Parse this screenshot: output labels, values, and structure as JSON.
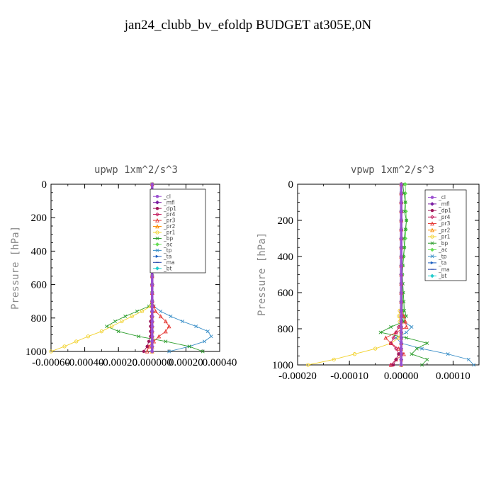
{
  "title": "jan24_clubb_bv_efoldp  BUDGET at305E,0N",
  "legend_entries": [
    {
      "name": "_cl",
      "color": "#9b4fd0",
      "marker": "dot"
    },
    {
      "name": "_mfl",
      "color": "#7b1fa2",
      "marker": "diamond"
    },
    {
      "name": "_dp1",
      "color": "#a0175a",
      "marker": "dot"
    },
    {
      "name": "_pr4",
      "color": "#c2185b",
      "marker": "open-diamond"
    },
    {
      "name": "_pr3",
      "color": "#e53935",
      "marker": "triangle"
    },
    {
      "name": "_pr2",
      "color": "#fb8c00",
      "marker": "triangle"
    },
    {
      "name": "_pr1",
      "color": "#f2d22e",
      "marker": "open-circle"
    },
    {
      "name": "_bp",
      "color": "#2e9e2e",
      "marker": "x"
    },
    {
      "name": "_ac",
      "color": "#66dd55",
      "marker": "diamond"
    },
    {
      "name": "_tp",
      "color": "#3a8fc8",
      "marker": "x"
    },
    {
      "name": "_ta",
      "color": "#1a5fc0",
      "marker": "arrow"
    },
    {
      "name": "_ma",
      "color": "#2244aa",
      "marker": "dash"
    },
    {
      "name": "_bt",
      "color": "#22cccc",
      "marker": "diamond"
    }
  ],
  "chart_data": [
    {
      "type": "line",
      "title": "upwp   1xm^2/s^3",
      "xlabel": "",
      "ylabel": "Pressure [hPa]",
      "xlim": [
        -0.0006,
        0.0004
      ],
      "ylim": [
        1000,
        0
      ],
      "xticks": [
        -0.0006,
        -0.0004,
        -0.0002,
        0.0,
        0.0002,
        0.0004
      ],
      "xtick_labels": [
        "-0.00060",
        "-0.00040",
        "-0.00020",
        "0.000000",
        "0.00020",
        "0.00040"
      ],
      "yticks": [
        0,
        200,
        400,
        600,
        800,
        1000
      ],
      "ytick_labels": [
        "0",
        "200",
        "400",
        "600",
        "800",
        "1000"
      ],
      "legend_position": "top-right",
      "y": [
        0,
        50,
        100,
        150,
        200,
        250,
        300,
        350,
        400,
        450,
        500,
        550,
        600,
        650,
        700,
        730,
        760,
        790,
        820,
        850,
        880,
        910,
        940,
        970,
        1000
      ],
      "series": [
        {
          "name": "_cl",
          "x": [
            0,
            0,
            0,
            0,
            0,
            0,
            0,
            0,
            0,
            0,
            0,
            0,
            0,
            0,
            0,
            0,
            0,
            0,
            0,
            0,
            0,
            0,
            0,
            0,
            0
          ]
        },
        {
          "name": "_mfl",
          "x": [
            0,
            0,
            0,
            0,
            0,
            0,
            0,
            0,
            0,
            0,
            0,
            0,
            0,
            0,
            0,
            0,
            0,
            0,
            0,
            0,
            0,
            0,
            0,
            0,
            0
          ]
        },
        {
          "name": "_dp1",
          "x": [
            0,
            0,
            0,
            0,
            0,
            0,
            0,
            0,
            0,
            0,
            0,
            0,
            0,
            0,
            0,
            0,
            0,
            -5e-06,
            -1e-05,
            -1e-05,
            -1e-05,
            -1e-05,
            -2e-05,
            -3e-05,
            -5e-05
          ]
        },
        {
          "name": "_pr4",
          "x": [
            0,
            0,
            0,
            0,
            0,
            0,
            0,
            0,
            0,
            0,
            0,
            0,
            0,
            0,
            0,
            0,
            0,
            0,
            0,
            0,
            0,
            0,
            0,
            0,
            0
          ]
        },
        {
          "name": "_pr3",
          "x": [
            0,
            0,
            0,
            0,
            0,
            0,
            0,
            0,
            0,
            0,
            0,
            0,
            0,
            0,
            0,
            1e-05,
            2e-05,
            5e-05,
            8e-05,
            0.0001,
            8e-05,
            4e-05,
            1e-05,
            -2e-05,
            -3e-05
          ]
        },
        {
          "name": "_pr2",
          "x": [
            0,
            0,
            0,
            0,
            0,
            0,
            0,
            0,
            0,
            0,
            0,
            0,
            0,
            0,
            0,
            0,
            0,
            0,
            0,
            0,
            0,
            0,
            0,
            0,
            0
          ]
        },
        {
          "name": "_pr1",
          "x": [
            0,
            0,
            0,
            0,
            0,
            0,
            0,
            0,
            0,
            0,
            0,
            0,
            0,
            0,
            0,
            -1e-05,
            -6e-05,
            -0.00012,
            -0.00018,
            -0.00024,
            -0.0003,
            -0.00038,
            -0.00045,
            -0.00052,
            -0.0006
          ]
        },
        {
          "name": "_bp",
          "x": [
            0,
            0,
            0,
            0,
            0,
            0,
            0,
            0,
            0,
            0,
            0,
            0,
            0,
            0,
            0,
            -2e-05,
            -9e-05,
            -0.00016,
            -0.00022,
            -0.00027,
            -0.0002,
            -8e-05,
            8e-05,
            0.00022,
            0.0003
          ]
        },
        {
          "name": "_ac",
          "x": [
            0,
            0,
            0,
            0,
            0,
            0,
            0,
            0,
            0,
            0,
            0,
            0,
            0,
            0,
            0,
            0,
            0,
            0,
            0,
            0,
            0,
            0,
            0,
            0,
            0
          ]
        },
        {
          "name": "_tp",
          "x": [
            0,
            0,
            0,
            0,
            0,
            0,
            0,
            0,
            0,
            0,
            0,
            0,
            0,
            0,
            0,
            1e-05,
            5e-05,
            0.00011,
            0.00018,
            0.00026,
            0.00033,
            0.00035,
            0.00031,
            0.00022,
            0.0001
          ]
        },
        {
          "name": "_ta",
          "x": [
            0,
            0,
            0,
            0,
            0,
            0,
            0,
            0,
            0,
            0,
            0,
            0,
            0,
            0,
            0,
            0,
            0,
            0,
            0,
            0,
            0,
            0,
            0,
            0,
            0
          ]
        },
        {
          "name": "_ma",
          "x": [
            0,
            0,
            0,
            0,
            0,
            0,
            0,
            0,
            0,
            0,
            0,
            0,
            0,
            0,
            0,
            0,
            0,
            0,
            0,
            0,
            0,
            0,
            0,
            0,
            0
          ]
        },
        {
          "name": "_bt",
          "x": [
            0,
            0,
            0,
            0,
            0,
            0,
            0,
            0,
            0,
            0,
            0,
            0,
            0,
            0,
            0,
            0,
            0,
            0,
            0,
            0,
            0,
            0,
            0,
            0,
            0
          ]
        }
      ]
    },
    {
      "type": "line",
      "title": "vpwp   1xm^2/s^3",
      "xlabel": "",
      "ylabel": "Pressure [hPa]",
      "xlim": [
        -0.0002,
        0.00015
      ],
      "ylim": [
        1000,
        0
      ],
      "xticks": [
        -0.0002,
        -0.0001,
        0.0,
        0.0001
      ],
      "xtick_labels": [
        "-0.00020",
        "-0.00010",
        "0.00000",
        "0.00010"
      ],
      "yticks": [
        0,
        200,
        400,
        600,
        800,
        1000
      ],
      "ytick_labels": [
        "0",
        "200",
        "400",
        "600",
        "800",
        "1000"
      ],
      "legend_position": "top-right",
      "y": [
        0,
        50,
        100,
        150,
        200,
        250,
        300,
        350,
        400,
        450,
        500,
        550,
        600,
        650,
        700,
        730,
        760,
        790,
        820,
        850,
        880,
        910,
        940,
        970,
        1000
      ],
      "series": [
        {
          "name": "_cl",
          "x": [
            0,
            0,
            0,
            0,
            0,
            0,
            0,
            0,
            0,
            0,
            0,
            0,
            0,
            0,
            0,
            0,
            0,
            0,
            0,
            0,
            0,
            0,
            0,
            0,
            0
          ]
        },
        {
          "name": "_mfl",
          "x": [
            0,
            0,
            0,
            0,
            0,
            0,
            0,
            0,
            0,
            0,
            0,
            0,
            0,
            0,
            0,
            0,
            0,
            0,
            0,
            0,
            0,
            0,
            0,
            0,
            0
          ]
        },
        {
          "name": "_dp1",
          "x": [
            0,
            0,
            0,
            0,
            0,
            0,
            0,
            0,
            0,
            0,
            0,
            0,
            0,
            0,
            0,
            0,
            0,
            0,
            0,
            0,
            0,
            0,
            -5e-06,
            -1e-05,
            -1.5e-05
          ]
        },
        {
          "name": "_pr4",
          "x": [
            0,
            0,
            0,
            0,
            0,
            0,
            0,
            0,
            0,
            0,
            0,
            0,
            0,
            0,
            0,
            0,
            0,
            -5e-06,
            -1e-05,
            -1.5e-05,
            -2e-05,
            -1e-05,
            -5e-06,
            -1e-05,
            -2e-05
          ]
        },
        {
          "name": "_pr3",
          "x": [
            0,
            0,
            0,
            0,
            0,
            0,
            0,
            0,
            0,
            0,
            0,
            0,
            0,
            0,
            0,
            5e-06,
            8e-06,
            1e-05,
            -1e-05,
            -3e-05,
            -2e-05,
            -5e-06,
            5e-06,
            -1e-05,
            -2e-05
          ]
        },
        {
          "name": "_pr2",
          "x": [
            0,
            0,
            0,
            0,
            0,
            0,
            0,
            0,
            0,
            0,
            0,
            0,
            0,
            0,
            0,
            0,
            0,
            0,
            0,
            0,
            0,
            0,
            0,
            0,
            0
          ]
        },
        {
          "name": "_pr1",
          "x": [
            0,
            0,
            0,
            0,
            0,
            0,
            0,
            0,
            0,
            0,
            0,
            0,
            0,
            0,
            -3e-06,
            -5e-06,
            -3e-06,
            0,
            0,
            -5e-06,
            -2e-05,
            -5e-05,
            -9e-05,
            -0.00013,
            -0.00018
          ]
        },
        {
          "name": "_bp",
          "x": [
            3e-06,
            5e-06,
            8e-06,
            6e-06,
            1e-05,
            8e-06,
            5e-06,
            6e-06,
            4e-06,
            3e-06,
            2e-06,
            3e-06,
            4e-06,
            5e-06,
            6e-06,
            1e-05,
            5e-06,
            -2e-05,
            -4e-05,
            1e-05,
            5e-05,
            3e-05,
            2e-05,
            5e-05,
            4e-05
          ]
        },
        {
          "name": "_ac",
          "x": [
            8e-06,
            8e-06,
            8e-06,
            9e-06,
            1e-05,
            9e-06,
            8e-06,
            6e-06,
            5e-06,
            3e-06,
            2e-06,
            2e-06,
            3e-06,
            3e-06,
            4e-06,
            5e-06,
            3e-06,
            0,
            0,
            0,
            0,
            0,
            0,
            0,
            0
          ]
        },
        {
          "name": "_tp",
          "x": [
            0,
            0,
            0,
            0,
            0,
            0,
            0,
            0,
            0,
            0,
            0,
            0,
            0,
            0,
            0,
            0,
            5e-06,
            2e-05,
            1e-05,
            -1e-05,
            0,
            4e-05,
            9e-05,
            0.00013,
            0.00014
          ]
        },
        {
          "name": "_ta",
          "x": [
            0,
            0,
            0,
            0,
            0,
            0,
            0,
            0,
            0,
            0,
            0,
            0,
            0,
            0,
            0,
            0,
            0,
            0,
            0,
            0,
            0,
            0,
            0,
            0,
            0
          ]
        },
        {
          "name": "_ma",
          "x": [
            0,
            0,
            0,
            0,
            0,
            0,
            0,
            0,
            0,
            0,
            0,
            0,
            0,
            0,
            0,
            0,
            0,
            0,
            0,
            0,
            0,
            0,
            0,
            0,
            0
          ]
        },
        {
          "name": "_bt",
          "x": [
            0,
            0,
            0,
            0,
            0,
            0,
            0,
            0,
            0,
            0,
            0,
            0,
            0,
            0,
            0,
            0,
            0,
            0,
            0,
            0,
            0,
            0,
            0,
            0,
            0
          ]
        }
      ]
    }
  ]
}
